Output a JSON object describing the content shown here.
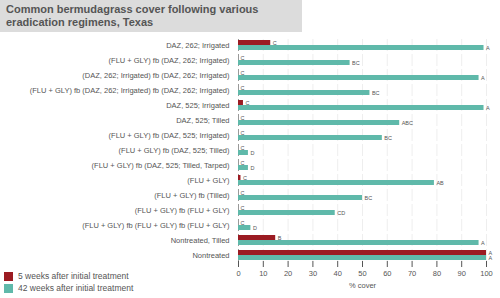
{
  "chart_data": {
    "type": "bar",
    "orientation": "horizontal",
    "title": "Common bermudagrass cover following various eradication regimens, Texas",
    "x_label": "% cover",
    "categories": [
      "DAZ, 262; Irrigated",
      "(FLU + GLY) fb (DAZ, 262; Irrigated)",
      "(DAZ, 262; Irrigated) fb (DAZ, 262; Irrigated)",
      "(FLU + GLY) fb (DAZ, 262; Irrigated) fb (DAZ, 262; Irrigated)",
      "DAZ, 525; Irrigated",
      "DAZ, 525; Tilled",
      "(FLU + GLY) fb (DAZ, 525; Irrigated)",
      "(FLU + GLY) fb (DAZ, 525; Tilled)",
      "(FLU + GLY) fb (DAZ, 525; Tilled, Tarped)",
      "(FLU + GLY)",
      "(FLU + GLY) fb (Tilled)",
      "(FLU + GLY) fb (FLU + GLY)",
      "(FLU + GLY) fb (FLU + GLY) fb (FLU + GLY)",
      "Nontreated, Tilled",
      "Nontreated"
    ],
    "series": [
      {
        "name": "5 weeks after initial treatment",
        "color": "#9b1b22",
        "values": [
          13,
          0,
          0,
          0,
          2,
          0,
          0,
          0,
          0,
          1,
          0,
          0,
          0,
          15,
          100
        ],
        "letters": [
          "C",
          "C",
          "C",
          "C",
          "C",
          "C",
          "C",
          "C",
          "C",
          "C",
          "C",
          "C",
          "C",
          "B",
          "A"
        ]
      },
      {
        "name": "42 weeks after initial treatment",
        "color": "#5fb9aa",
        "values": [
          99,
          45,
          97,
          53,
          99,
          65,
          58,
          4,
          4,
          79,
          50,
          39,
          5,
          97,
          100
        ],
        "letters": [
          "A",
          "BC",
          "A",
          "BC",
          "A",
          "ABC",
          "BC",
          "D",
          "D",
          "AB",
          "BC",
          "CD",
          "D",
          "A",
          "A"
        ]
      }
    ],
    "xlim": [
      0,
      100
    ],
    "xticks": [
      0,
      10,
      20,
      30,
      40,
      50,
      60,
      70,
      80,
      90,
      100
    ],
    "grid": true,
    "legend": "bottom-left"
  }
}
